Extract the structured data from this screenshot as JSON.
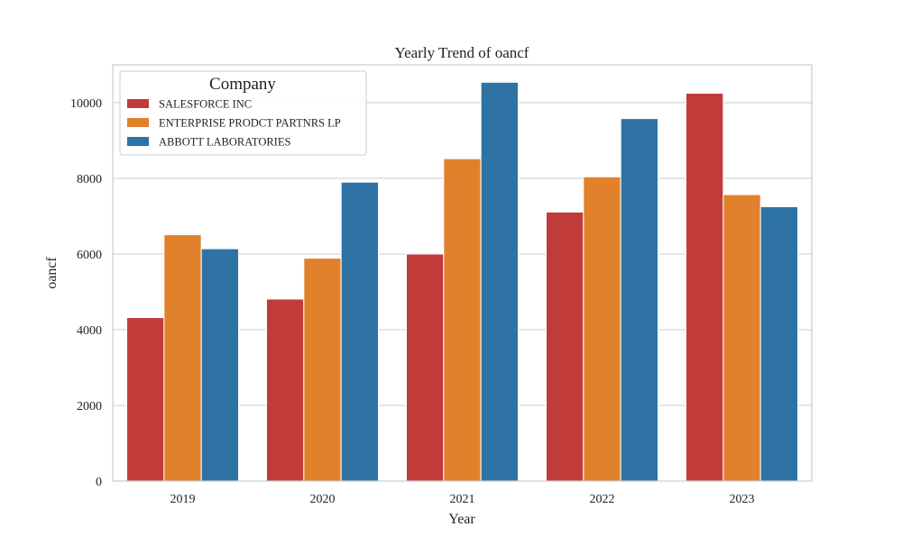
{
  "chart_data": {
    "type": "bar",
    "title": "Yearly Trend of oancf",
    "xlabel": "Year",
    "ylabel": "oancf",
    "categories": [
      "2019",
      "2020",
      "2021",
      "2022",
      "2023"
    ],
    "series": [
      {
        "name": "SALESFORCE INC",
        "color": "#c23b3b",
        "values": [
          4320,
          4810,
          6000,
          7110,
          10250
        ]
      },
      {
        "name": "ENTERPRISE PRODCT PARTNRS LP",
        "color": "#e2812b",
        "values": [
          6510,
          5890,
          8520,
          8040,
          7570
        ]
      },
      {
        "name": "ABBOTT LABORATORIES",
        "color": "#2e73a4",
        "values": [
          6140,
          7900,
          10540,
          9580,
          7250
        ]
      }
    ],
    "ylim": [
      0,
      11000
    ],
    "yticks": [
      0,
      2000,
      4000,
      6000,
      8000,
      10000
    ],
    "ytick_labels": [
      "0",
      "2000",
      "4000",
      "6000",
      "8000",
      "10000"
    ],
    "grid": true,
    "legend": {
      "title": "Company",
      "placement": "top-left"
    }
  }
}
